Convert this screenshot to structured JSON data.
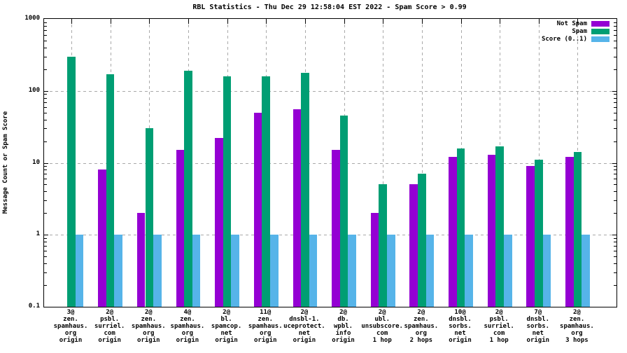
{
  "page": {
    "background": "#ffffff"
  },
  "chart_data": {
    "type": "bar",
    "title": "RBL Statistics - Thu Dec 29 12:58:04 EST 2022 - Spam Score > 0.99",
    "ylabel": "Message Count or Spam Score",
    "xlabel": "",
    "yscale": "log",
    "ylim": [
      0.1,
      1000
    ],
    "ytick_labels": [
      "0.1",
      "1",
      "10",
      "100",
      "1000"
    ],
    "grid": "dashed horizontal at decades and vertical at each category",
    "legend_position": "top-right-inside",
    "grid_color": "#a9a9a9",
    "categories": [
      [
        "3@",
        "zen.",
        "spamhaus.",
        "org",
        "origin"
      ],
      [
        "2@",
        "psbl.",
        "surriel.",
        "com",
        "origin"
      ],
      [
        "2@",
        "zen.",
        "spamhaus.",
        "org",
        "origin"
      ],
      [
        "4@",
        "zen.",
        "spamhaus.",
        "org",
        "origin"
      ],
      [
        "2@",
        "bl.",
        "spamcop.",
        "net",
        "origin"
      ],
      [
        "11@",
        "zen.",
        "spamhaus.",
        "org",
        "origin"
      ],
      [
        "2@",
        "dnsbl-1.",
        "uceprotect.",
        "net",
        "origin"
      ],
      [
        "2@",
        "db.",
        "wpbl.",
        "info",
        "origin"
      ],
      [
        "2@",
        "ubl.",
        "unsubscore.",
        "com",
        "1 hop"
      ],
      [
        "2@",
        "zen.",
        "spamhaus.",
        "org",
        "2 hops"
      ],
      [
        "10@",
        "dnsbl.",
        "sorbs.",
        "net",
        "origin"
      ],
      [
        "2@",
        "psbl.",
        "surriel.",
        "com",
        "1 hop"
      ],
      [
        "7@",
        "dnsbl.",
        "sorbs.",
        "net",
        "origin"
      ],
      [
        "2@",
        "zen.",
        "spamhaus.",
        "org",
        "3 hops"
      ]
    ],
    "series": [
      {
        "name": "Not Spam",
        "color": "#9400d3",
        "values": [
          null,
          8,
          2,
          15,
          22,
          50,
          55,
          15,
          2,
          5,
          12,
          13,
          9,
          12
        ]
      },
      {
        "name": "Spam",
        "color": "#009e73",
        "values": [
          300,
          170,
          30,
          190,
          160,
          160,
          180,
          45,
          5,
          7,
          16,
          17,
          11,
          14
        ]
      },
      {
        "name": "Score (0..1)",
        "color": "#56b4e9",
        "values": [
          1,
          1,
          1,
          1,
          1,
          1,
          1,
          1,
          1,
          1,
          1,
          1,
          1,
          1
        ]
      }
    ]
  }
}
